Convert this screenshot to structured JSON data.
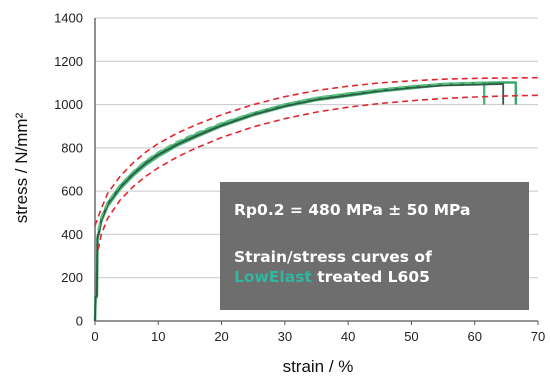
{
  "chart_data": {
    "type": "line",
    "title": "",
    "xlabel": "strain / %",
    "ylabel": "stress / N/mm²",
    "xlim": [
      0,
      70
    ],
    "ylim": [
      0,
      1400
    ],
    "x_ticks": [
      0,
      10,
      20,
      30,
      40,
      50,
      60,
      70
    ],
    "y_ticks": [
      0,
      200,
      400,
      600,
      800,
      1000,
      1200,
      1400
    ],
    "grid": "horizontal",
    "series": [
      {
        "style": "solid-green",
        "color": "#4cb87a",
        "points": [
          [
            0,
            0
          ],
          [
            0.1,
            110
          ],
          [
            0.3,
            110
          ],
          [
            0.4,
            380
          ],
          [
            0.6,
            400
          ],
          [
            1,
            460
          ],
          [
            2,
            530
          ],
          [
            4,
            610
          ],
          [
            6,
            670
          ],
          [
            8,
            720
          ],
          [
            10,
            760
          ],
          [
            13,
            810
          ],
          [
            16,
            850
          ],
          [
            20,
            900
          ],
          [
            25,
            950
          ],
          [
            30,
            990
          ],
          [
            35,
            1020
          ],
          [
            40,
            1040
          ],
          [
            45,
            1060
          ],
          [
            50,
            1075
          ],
          [
            55,
            1090
          ],
          [
            58,
            1095
          ],
          [
            61.5,
            1100
          ],
          [
            61.5,
            1000
          ]
        ]
      },
      {
        "style": "solid-green",
        "color": "#3aa86a",
        "points": [
          [
            0,
            0
          ],
          [
            0.1,
            120
          ],
          [
            0.3,
            120
          ],
          [
            0.4,
            390
          ],
          [
            0.6,
            410
          ],
          [
            1,
            470
          ],
          [
            2,
            545
          ],
          [
            4,
            625
          ],
          [
            6,
            685
          ],
          [
            8,
            735
          ],
          [
            10,
            775
          ],
          [
            13,
            822
          ],
          [
            16,
            862
          ],
          [
            20,
            910
          ],
          [
            25,
            960
          ],
          [
            30,
            1000
          ],
          [
            35,
            1030
          ],
          [
            40,
            1050
          ],
          [
            45,
            1068
          ],
          [
            50,
            1083
          ],
          [
            55,
            1095
          ],
          [
            60,
            1100
          ],
          [
            64,
            1102
          ],
          [
            66.5,
            1102
          ],
          [
            66.5,
            1000
          ]
        ]
      },
      {
        "style": "solid-dark",
        "color": "#2f5a45",
        "points": [
          [
            0,
            0
          ],
          [
            0.1,
            115
          ],
          [
            0.3,
            115
          ],
          [
            0.4,
            385
          ],
          [
            0.6,
            405
          ],
          [
            1,
            465
          ],
          [
            2,
            538
          ],
          [
            4,
            618
          ],
          [
            6,
            678
          ],
          [
            8,
            728
          ],
          [
            10,
            768
          ],
          [
            13,
            815
          ],
          [
            16,
            855
          ],
          [
            20,
            903
          ],
          [
            25,
            953
          ],
          [
            30,
            993
          ],
          [
            35,
            1023
          ],
          [
            40,
            1043
          ],
          [
            45,
            1063
          ],
          [
            50,
            1078
          ],
          [
            55,
            1088
          ],
          [
            60,
            1092
          ],
          [
            64.5,
            1095
          ],
          [
            64.5,
            1000
          ]
        ]
      },
      {
        "style": "dashed-green",
        "color": "#5cc27e",
        "points": [
          [
            0.5,
            420
          ],
          [
            1,
            480
          ],
          [
            2,
            550
          ],
          [
            4,
            630
          ],
          [
            6,
            690
          ],
          [
            8,
            740
          ],
          [
            10,
            780
          ],
          [
            13,
            828
          ],
          [
            16,
            868
          ],
          [
            20,
            915
          ],
          [
            25,
            962
          ],
          [
            30,
            1002
          ],
          [
            35,
            1032
          ],
          [
            40,
            1052
          ],
          [
            45,
            1070
          ],
          [
            50,
            1086
          ],
          [
            55,
            1096
          ],
          [
            60,
            1100
          ],
          [
            62,
            1102
          ]
        ]
      },
      {
        "style": "dashed-red-upper",
        "color": "#e0282e",
        "points": [
          [
            0,
            440
          ],
          [
            1,
            520
          ],
          [
            2,
            590
          ],
          [
            4,
            670
          ],
          [
            6,
            730
          ],
          [
            8,
            780
          ],
          [
            10,
            820
          ],
          [
            13,
            868
          ],
          [
            16,
            907
          ],
          [
            20,
            953
          ],
          [
            25,
            1000
          ],
          [
            30,
            1037
          ],
          [
            35,
            1065
          ],
          [
            40,
            1085
          ],
          [
            45,
            1100
          ],
          [
            50,
            1110
          ],
          [
            55,
            1117
          ],
          [
            60,
            1121
          ],
          [
            65,
            1123
          ],
          [
            70,
            1124
          ]
        ]
      },
      {
        "style": "dashed-red-lower",
        "color": "#e0282e",
        "points": [
          [
            0.5,
            330
          ],
          [
            1,
            400
          ],
          [
            2,
            475
          ],
          [
            4,
            560
          ],
          [
            6,
            620
          ],
          [
            8,
            668
          ],
          [
            10,
            708
          ],
          [
            13,
            758
          ],
          [
            16,
            800
          ],
          [
            20,
            848
          ],
          [
            25,
            897
          ],
          [
            30,
            935
          ],
          [
            35,
            965
          ],
          [
            40,
            988
          ],
          [
            45,
            1005
          ],
          [
            50,
            1018
          ],
          [
            55,
            1028
          ],
          [
            60,
            1035
          ],
          [
            65,
            1040
          ],
          [
            70,
            1043
          ]
        ]
      }
    ],
    "annotation": {
      "line1": "Rp0.2 = 480 MPa ± 50 MPa",
      "line2": "Strain/stress curves of",
      "line3_highlight": "LowElast",
      "line3_rest": " treated L605",
      "box_color": "#6e6e6e",
      "highlight_color": "#2fb7a0"
    }
  }
}
